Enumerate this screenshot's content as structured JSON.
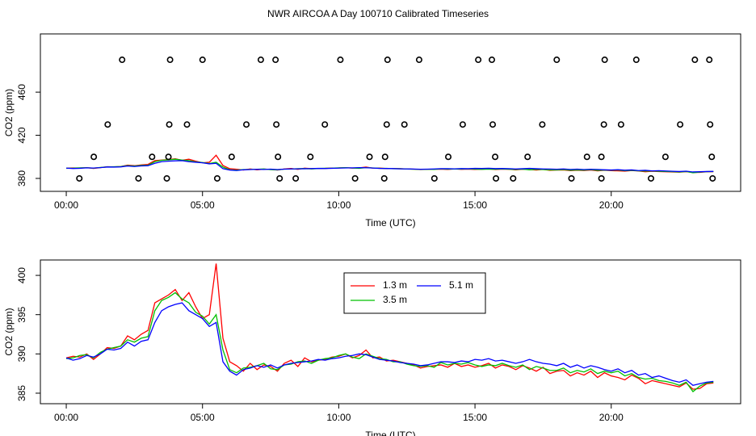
{
  "title": "NWR AIRCOA A  Day 100710  Calibrated Timeseries",
  "chart_data": [
    {
      "type": "scatter",
      "x_label": "Time (UTC)",
      "y_label": "CO2 (ppm)",
      "xlim": [
        -0.95,
        24.75
      ],
      "ylim": [
        368,
        514
      ],
      "xticks": [
        {
          "value": 0,
          "label": "00:00"
        },
        {
          "value": 5,
          "label": "05:00"
        },
        {
          "value": 10,
          "label": "10:00"
        },
        {
          "value": 15,
          "label": "15:00"
        },
        {
          "value": 20,
          "label": "20:00"
        }
      ],
      "yticks": [
        380,
        420,
        460
      ],
      "series": [
        {
          "color": "#000000",
          "x": [
            2.05,
            3.81,
            5.0,
            7.14,
            7.68,
            10.06,
            11.79,
            12.95,
            15.12,
            15.62,
            18.0,
            19.76,
            20.92,
            23.07,
            23.6,
            1.52,
            3.78,
            4.43,
            6.61,
            7.71,
            9.49,
            11.76,
            12.41,
            14.55,
            15.65,
            17.47,
            19.73,
            20.36,
            22.53,
            23.63,
            1.01,
            3.15,
            3.75,
            6.07,
            7.77,
            8.96,
            11.13,
            11.7,
            14.02,
            15.74,
            16.93,
            19.11,
            19.64,
            21.99,
            23.69,
            0.48,
            2.65,
            3.69,
            5.54,
            7.83,
            8.42,
            10.6,
            11.67,
            13.51,
            15.77,
            16.4,
            18.54,
            19.64,
            21.46,
            23.72
          ],
          "values": [
            490,
            490,
            490,
            490,
            490,
            490,
            490,
            490,
            490,
            490,
            490,
            490,
            490,
            490,
            490,
            430,
            430,
            430,
            430,
            430,
            430,
            430,
            430,
            430,
            430,
            430,
            430,
            430,
            430,
            430,
            400,
            400,
            400,
            400,
            400,
            400,
            400,
            400,
            400,
            400,
            400,
            400,
            400,
            400,
            400,
            380,
            380,
            380,
            380,
            380,
            380,
            380,
            380,
            380,
            380,
            380,
            380,
            380,
            380,
            380
          ]
        }
      ]
    },
    {
      "type": "line",
      "x_label": "Time (UTC)",
      "y_label": "CO2 (ppm)",
      "xlim": [
        -0.95,
        24.75
      ],
      "ylim": [
        383.66,
        401.96
      ],
      "xticks": [
        {
          "value": 0,
          "label": "00:00"
        },
        {
          "value": 5,
          "label": "05:00"
        },
        {
          "value": 10,
          "label": "10:00"
        },
        {
          "value": 15,
          "label": "15:00"
        },
        {
          "value": 20,
          "label": "20:00"
        }
      ],
      "yticks": [
        385,
        390,
        395,
        400
      ],
      "legend": "top",
      "x": [
        0,
        0.25,
        0.5,
        0.75,
        1,
        1.25,
        1.5,
        1.75,
        2,
        2.25,
        2.5,
        2.75,
        3,
        3.25,
        3.5,
        3.75,
        4,
        4.25,
        4.5,
        4.75,
        5,
        5.25,
        5.5,
        5.75,
        6,
        6.25,
        6.5,
        6.75,
        7,
        7.25,
        7.5,
        7.75,
        8,
        8.25,
        8.5,
        8.75,
        9,
        9.25,
        9.5,
        9.75,
        10,
        10.25,
        10.5,
        10.75,
        11,
        11.25,
        11.5,
        11.75,
        12,
        12.25,
        12.5,
        12.75,
        13,
        13.25,
        13.5,
        13.75,
        14,
        14.25,
        14.5,
        14.75,
        15,
        15.25,
        15.5,
        15.75,
        16,
        16.25,
        16.5,
        16.75,
        17,
        17.25,
        17.5,
        17.75,
        18,
        18.25,
        18.5,
        18.75,
        19,
        19.25,
        19.5,
        19.75,
        20,
        20.25,
        20.5,
        20.75,
        21,
        21.25,
        21.5,
        21.75,
        22,
        22.25,
        22.5,
        22.75,
        23,
        23.25,
        23.5,
        23.75
      ],
      "series": [
        {
          "name": "1.3 m",
          "color": "#ff0000",
          "values": [
            389.5,
            389.7,
            389.6,
            390.0,
            389.3,
            390.0,
            390.8,
            390.7,
            391.0,
            392.3,
            391.8,
            392.5,
            393.0,
            396.5,
            397.0,
            397.5,
            398.2,
            396.8,
            397.8,
            396.0,
            394.5,
            395.0,
            401.5,
            392.0,
            389.0,
            388.5,
            387.8,
            388.8,
            388.0,
            388.6,
            388.4,
            387.8,
            388.8,
            389.2,
            388.4,
            389.5,
            389.0,
            389.2,
            389.3,
            389.6,
            389.7,
            390.0,
            389.5,
            389.8,
            390.5,
            389.5,
            389.6,
            389.1,
            389.2,
            389.0,
            388.8,
            388.6,
            388.2,
            388.4,
            388.5,
            388.6,
            388.3,
            388.8,
            388.4,
            388.6,
            388.3,
            388.5,
            388.8,
            388.2,
            388.6,
            388.4,
            388.0,
            388.5,
            388.2,
            387.8,
            388.3,
            387.5,
            387.8,
            387.9,
            387.2,
            387.6,
            387.3,
            387.8,
            387.0,
            387.6,
            387.2,
            387.0,
            386.7,
            387.3,
            386.9,
            386.2,
            386.6,
            386.4,
            386.2,
            386.0,
            385.8,
            386.3,
            385.5,
            385.6,
            386.2,
            386.3
          ]
        },
        {
          "name": "3.5 m",
          "color": "#00c000",
          "values": [
            389.4,
            389.5,
            389.8,
            389.9,
            389.5,
            390.2,
            390.6,
            390.8,
            391.0,
            391.8,
            391.5,
            392.0,
            392.2,
            395.5,
            396.8,
            397.2,
            397.8,
            397.0,
            396.5,
            395.3,
            394.8,
            393.8,
            395.0,
            390.5,
            388.0,
            387.6,
            388.2,
            388.3,
            388.5,
            388.8,
            388.1,
            388.0,
            388.6,
            388.7,
            389.0,
            389.1,
            388.8,
            389.2,
            389.4,
            389.5,
            389.8,
            390.0,
            389.6,
            389.4,
            390.0,
            389.7,
            389.4,
            389.3,
            389.0,
            389.0,
            388.7,
            388.5,
            388.4,
            388.5,
            388.3,
            388.9,
            388.6,
            388.8,
            388.7,
            388.9,
            388.6,
            388.4,
            388.6,
            388.5,
            388.8,
            388.5,
            388.3,
            388.6,
            388.0,
            388.4,
            388.2,
            387.9,
            387.9,
            388.2,
            387.6,
            387.9,
            387.7,
            388.1,
            387.5,
            387.8,
            387.6,
            387.8,
            387.2,
            387.5,
            387.0,
            386.8,
            386.9,
            386.6,
            386.5,
            386.3,
            386.0,
            386.4,
            385.2,
            385.9,
            386.3,
            386.4
          ]
        },
        {
          "name": "5.1 m",
          "color": "#0000ff",
          "values": [
            389.5,
            389.2,
            389.4,
            389.8,
            389.6,
            390.0,
            390.6,
            390.5,
            390.7,
            391.5,
            391.0,
            391.6,
            391.8,
            394.0,
            395.5,
            396.0,
            396.3,
            396.5,
            395.5,
            395.0,
            394.5,
            393.5,
            394.0,
            389.0,
            387.8,
            387.3,
            388.0,
            388.2,
            388.5,
            388.3,
            388.6,
            388.2,
            388.6,
            388.8,
            388.9,
            389.0,
            389.1,
            389.3,
            389.2,
            389.4,
            389.5,
            389.7,
            389.8,
            390.0,
            389.9,
            389.6,
            389.3,
            389.2,
            389.1,
            388.9,
            388.8,
            388.7,
            388.5,
            388.6,
            388.8,
            389.0,
            389.0,
            388.9,
            389.1,
            389.0,
            389.3,
            389.2,
            389.4,
            389.1,
            389.2,
            389.0,
            388.8,
            389.0,
            389.3,
            389.0,
            388.8,
            388.7,
            388.5,
            388.8,
            388.3,
            388.6,
            388.2,
            388.5,
            388.3,
            388.0,
            387.8,
            388.1,
            387.6,
            387.9,
            387.3,
            387.5,
            387.0,
            387.2,
            386.9,
            386.6,
            386.4,
            386.7,
            386.0,
            386.2,
            386.4,
            386.5
          ]
        }
      ]
    }
  ]
}
